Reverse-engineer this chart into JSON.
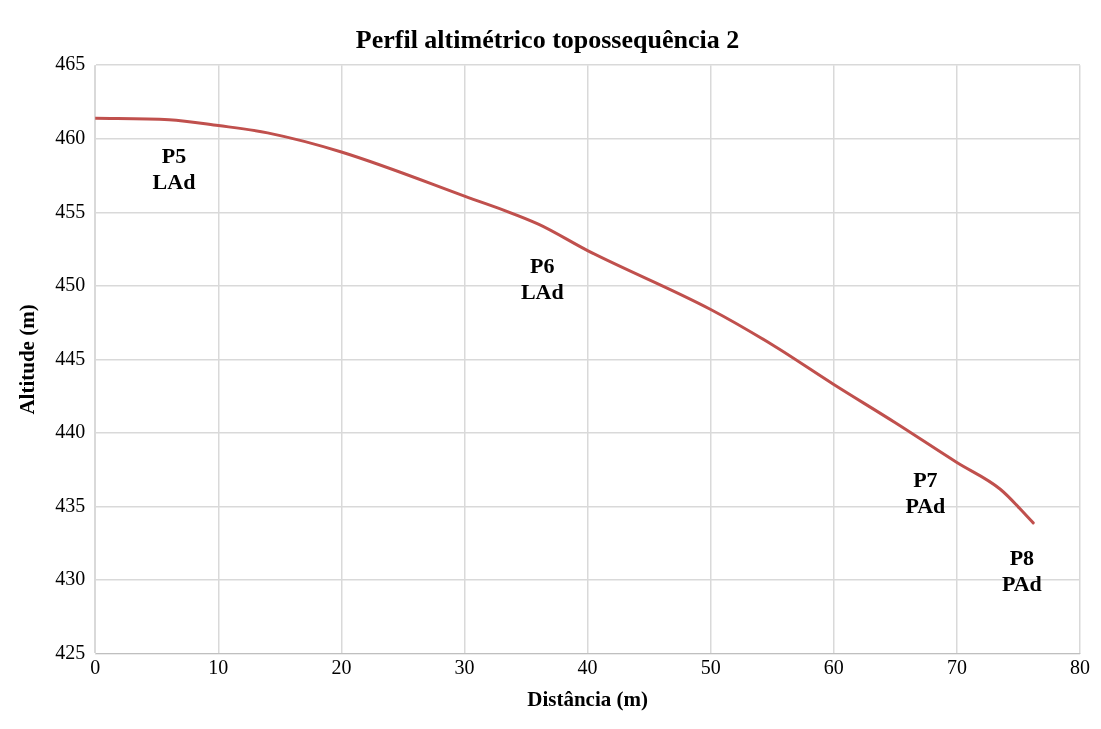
{
  "chart_data": {
    "type": "line",
    "title": "Perfil altimétrico topossequência 2",
    "xlabel": "Distância (m)",
    "ylabel": "Altitude (m)",
    "x": [
      0,
      6,
      10,
      14,
      20,
      30,
      36,
      40,
      50,
      55,
      60,
      65,
      70,
      73.5,
      76.2
    ],
    "series": [
      {
        "color": "#c0504d",
        "values": [
          461.4,
          461.3,
          460.9,
          460.4,
          459.1,
          456.1,
          454.2,
          452.4,
          448.4,
          446.0,
          443.3,
          440.7,
          438.0,
          436.2,
          433.9
        ]
      }
    ],
    "xlim": [
      0,
      80
    ],
    "xticks": [
      0,
      10,
      20,
      30,
      40,
      50,
      60,
      70,
      80
    ],
    "ylim": [
      425,
      465
    ],
    "yticks": [
      425,
      430,
      435,
      440,
      445,
      450,
      455,
      460,
      465
    ],
    "grid": true,
    "legend": false,
    "marker": "none",
    "line_style": "solid",
    "annotations": [
      "P5\nLAd",
      "P6\nLAd",
      "P7\nPAd",
      "P8\nPAd"
    ]
  }
}
